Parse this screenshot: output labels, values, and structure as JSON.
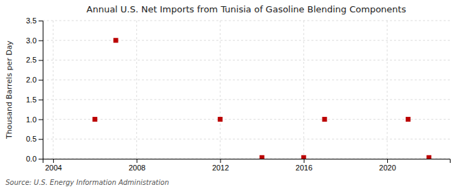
{
  "chart_data": {
    "type": "scatter",
    "title": "Annual U.S. Net Imports from Tunisia of Gasoline Blending Components",
    "ylabel": "Thousand Barrels per Day",
    "source": "Source: U.S. Energy Information Administration",
    "x": [
      2006,
      2007,
      2012,
      2014,
      2016,
      2017,
      2021,
      2022
    ],
    "values": [
      1.0,
      3.0,
      1.0,
      0.03,
      0.03,
      1.0,
      1.0,
      0.03
    ],
    "color": "#bb0000",
    "marker": "square",
    "xlim": [
      2003.5,
      2023
    ],
    "ylim": [
      0.0,
      3.5
    ],
    "xticks": [
      2004,
      2008,
      2012,
      2016,
      2020
    ],
    "yticks": [
      {
        "value": 0.0,
        "label": "0.0"
      },
      0.5,
      {
        "value": 1.0,
        "label": "1.0"
      },
      1.5,
      {
        "value": 2.0,
        "label": "2.0"
      },
      2.5,
      {
        "value": 3.0,
        "label": "3.0"
      },
      3.5
    ],
    "grid": true
  }
}
